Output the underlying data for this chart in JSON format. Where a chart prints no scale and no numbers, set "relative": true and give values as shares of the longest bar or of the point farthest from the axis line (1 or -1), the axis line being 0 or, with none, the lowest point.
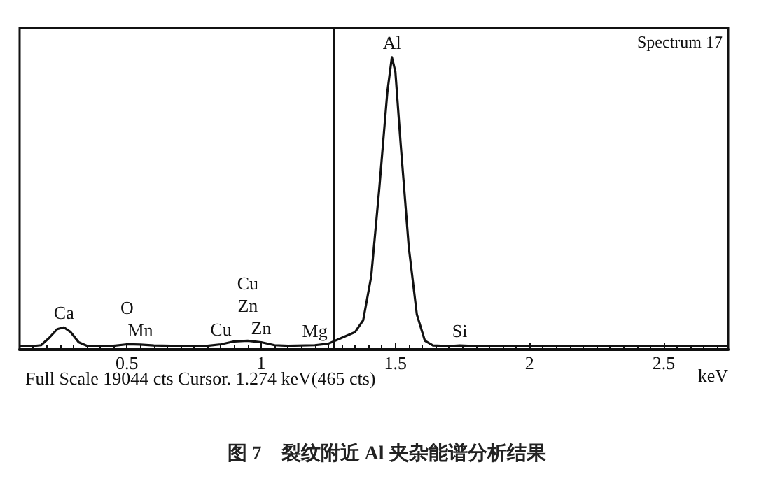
{
  "chart_data": {
    "type": "line",
    "title": "图 7　裂纹附近 Al 夹杂能谱分析结果",
    "xlabel": "keV",
    "relative": true,
    "xlim": [
      0.1,
      2.74
    ],
    "xticks": [
      0.5,
      1,
      1.5,
      2,
      2.5
    ],
    "x": [
      0.1,
      0.15,
      0.18,
      0.21,
      0.24,
      0.265,
      0.29,
      0.32,
      0.35,
      0.4,
      0.45,
      0.5,
      0.55,
      0.6,
      0.7,
      0.8,
      0.85,
      0.9,
      0.95,
      1.0,
      1.05,
      1.1,
      1.2,
      1.25,
      1.3,
      1.35,
      1.38,
      1.41,
      1.44,
      1.47,
      1.487,
      1.5,
      1.52,
      1.55,
      1.58,
      1.61,
      1.64,
      1.7,
      1.74,
      1.8,
      2.0,
      2.5,
      2.74
    ],
    "series": [
      {
        "color": "#111111",
        "values": [
          0.012,
          0.012,
          0.015,
          0.04,
          0.07,
          0.076,
          0.06,
          0.025,
          0.013,
          0.012,
          0.013,
          0.018,
          0.017,
          0.014,
          0.012,
          0.013,
          0.018,
          0.028,
          0.03,
          0.025,
          0.015,
          0.013,
          0.015,
          0.02,
          0.04,
          0.06,
          0.1,
          0.25,
          0.55,
          0.88,
          1,
          0.95,
          0.7,
          0.35,
          0.12,
          0.03,
          0.014,
          0.012,
          0.014,
          0.012,
          0.012,
          0.011,
          0.011
        ]
      }
    ],
    "ref_lines": [
      {
        "axis": "x",
        "value": 1.274,
        "color": "#111111"
      }
    ],
    "annotations": [
      {
        "text": "Ca",
        "x": 0.265,
        "y": 0.076
      },
      {
        "text": "O",
        "x": 0.5,
        "y": 0.018
      },
      {
        "text": "Mn",
        "x": 0.55,
        "y": 0.017
      },
      {
        "text": "Cu",
        "x": 0.85,
        "y": 0.018
      },
      {
        "text": "Cu",
        "x": 0.95,
        "y": 0.03
      },
      {
        "text": "Zn",
        "x": 0.95,
        "y": 0.03
      },
      {
        "text": "Zn",
        "x": 1.0,
        "y": 0.025
      },
      {
        "text": "Mg",
        "x": 1.2,
        "y": 0.015
      },
      {
        "text": "Al",
        "x": 1.487,
        "y": 1
      },
      {
        "text": "Si",
        "x": 1.74,
        "y": 0.014
      },
      "Spectrum 17",
      "Full Scale 19044 cts Cursor. 1.274 keV(465 cts)"
    ],
    "grid": false,
    "marker": "none",
    "line_style": "solid"
  }
}
